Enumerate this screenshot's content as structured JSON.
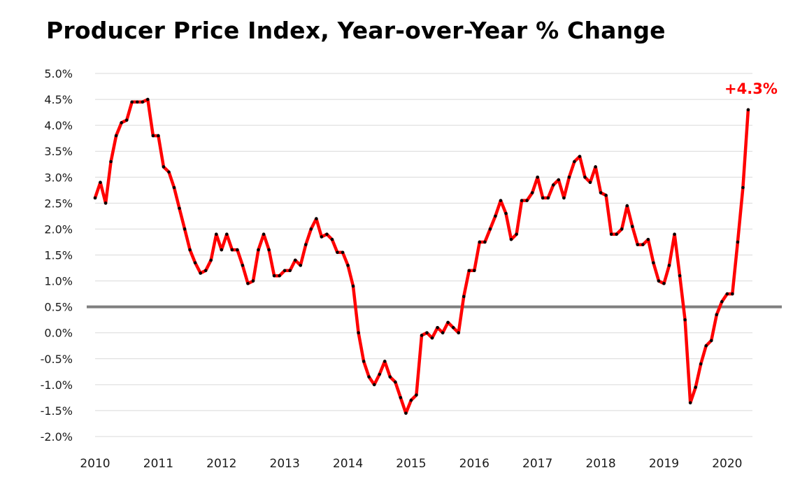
{
  "chart_data": {
    "type": "line",
    "title": "Producer Price Index, Year-over-Year  % Change",
    "xlabel": "",
    "ylabel": "",
    "ylim": [
      -2.0,
      5.0
    ],
    "xlim": [
      2010.0,
      2020.4
    ],
    "y_ticks": [
      "5.0%",
      "4.5%",
      "4.0%",
      "3.5%",
      "3.0%",
      "2.5%",
      "2.0%",
      "1.5%",
      "1.0%",
      "0.5%",
      "0.0%",
      "-0.5%",
      "-1.0%",
      "-1.5%",
      "-2.0%"
    ],
    "x_ticks": [
      "2010",
      "2011",
      "2012",
      "2013",
      "2014",
      "2015",
      "2016",
      "2017",
      "2018",
      "2019",
      "2020"
    ],
    "grid": true,
    "reference_line": {
      "value": 0.5
    },
    "annotation": {
      "text": "+4.3%",
      "value": 4.3
    },
    "colors": {
      "line": "#ff0000",
      "markers": "#000000",
      "reference_line": "#7f7f7f",
      "annotation": "#ff0000",
      "grid": "#d9d9d9"
    },
    "series": [
      {
        "x": [
          2010.0,
          2010.083,
          2010.167,
          2010.25,
          2010.333,
          2010.417,
          2010.5,
          2010.583,
          2010.667,
          2010.75,
          2010.833,
          2010.917,
          2011.0,
          2011.083,
          2011.167,
          2011.25,
          2011.333,
          2011.417,
          2011.5,
          2011.583,
          2011.667,
          2011.75,
          2011.833,
          2011.917,
          2012.0,
          2012.083,
          2012.167,
          2012.25,
          2012.333,
          2012.417,
          2012.5,
          2012.583,
          2012.667,
          2012.75,
          2012.833,
          2012.917,
          2013.0,
          2013.083,
          2013.167,
          2013.25,
          2013.333,
          2013.417,
          2013.5,
          2013.583,
          2013.667,
          2013.75,
          2013.833,
          2013.917,
          2014.0,
          2014.083,
          2014.167,
          2014.25,
          2014.333,
          2014.417,
          2014.5,
          2014.583,
          2014.667,
          2014.75,
          2014.833,
          2014.917,
          2015.0,
          2015.083,
          2015.167,
          2015.25,
          2015.333,
          2015.417,
          2015.5,
          2015.583,
          2015.667,
          2015.75,
          2015.833,
          2015.917,
          2016.0,
          2016.083,
          2016.167,
          2016.25,
          2016.333,
          2016.417,
          2016.5,
          2016.583,
          2016.667,
          2016.75,
          2016.833,
          2016.917,
          2017.0,
          2017.083,
          2017.167,
          2017.25,
          2017.333,
          2017.417,
          2017.5,
          2017.583,
          2017.667,
          2017.75,
          2017.833,
          2017.917,
          2018.0,
          2018.083,
          2018.167,
          2018.25,
          2018.333,
          2018.417,
          2018.5,
          2018.583,
          2018.667,
          2018.75,
          2018.833,
          2018.917,
          2019.0,
          2019.083,
          2019.167,
          2019.25,
          2019.333,
          2019.417,
          2019.5,
          2019.583,
          2019.667,
          2019.75,
          2019.833,
          2019.917,
          2020.0,
          2020.083,
          2020.167,
          2020.25,
          2020.333
        ],
        "values": [
          2.6,
          2.9,
          2.5,
          3.3,
          3.8,
          4.05,
          4.1,
          4.45,
          4.45,
          4.45,
          4.5,
          3.8,
          3.8,
          3.2,
          3.1,
          2.8,
          2.4,
          2.0,
          1.6,
          1.35,
          1.15,
          1.2,
          1.4,
          1.9,
          1.6,
          1.9,
          1.6,
          1.6,
          1.3,
          0.95,
          1.0,
          1.6,
          1.9,
          1.6,
          1.1,
          1.1,
          1.2,
          1.2,
          1.4,
          1.3,
          1.7,
          2.0,
          2.2,
          1.85,
          1.9,
          1.8,
          1.55,
          1.55,
          1.3,
          0.9,
          0.0,
          -0.55,
          -0.85,
          -1.0,
          -0.8,
          -0.55,
          -0.85,
          -0.95,
          -1.25,
          -1.55,
          -1.3,
          -1.2,
          -0.05,
          0.0,
          -0.1,
          0.1,
          0.0,
          0.2,
          0.1,
          0.0,
          0.7,
          1.2,
          1.2,
          1.75,
          1.75,
          2.0,
          2.25,
          2.55,
          2.3,
          1.8,
          1.9,
          2.55,
          2.55,
          2.7,
          3.0,
          2.6,
          2.6,
          2.85,
          2.95,
          2.6,
          3.0,
          3.3,
          3.4,
          3.0,
          2.9,
          3.2,
          2.7,
          2.65,
          1.9,
          1.9,
          2.0,
          2.45,
          2.05,
          1.7,
          1.7,
          1.8,
          1.35,
          1.0,
          0.95,
          1.3,
          1.9,
          1.1,
          0.25,
          -1.35,
          -1.05,
          -0.6,
          -0.25,
          -0.15,
          0.35,
          0.6,
          0.75,
          0.75,
          1.75,
          2.8,
          4.3
        ]
      }
    ]
  }
}
